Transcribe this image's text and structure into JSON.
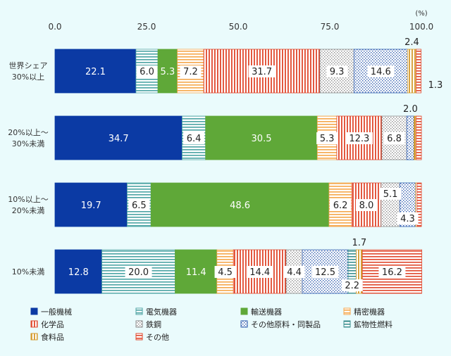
{
  "chart_data": {
    "type": "bar",
    "orientation": "horizontal",
    "stacked": true,
    "unit_label": "(%)",
    "xlim": [
      0,
      100
    ],
    "x_ticks": [
      "0.0",
      "25.0",
      "50.0",
      "75.0",
      "100.0"
    ],
    "categories": [
      [
        "世界シェア",
        "30%以上"
      ],
      [
        "20%以上～",
        "30%未満"
      ],
      [
        "10%以上～",
        "20%未満"
      ],
      [
        "10%未満"
      ]
    ],
    "series": [
      {
        "name": "一般機械",
        "color": "#0b3aa4",
        "pattern": "solid",
        "values": [
          22.1,
          34.7,
          19.7,
          12.8
        ]
      },
      {
        "name": "電気機器",
        "color": "#4aa3a3",
        "pattern": "hlines",
        "values": [
          6.0,
          6.4,
          6.5,
          20.0
        ]
      },
      {
        "name": "輸送機器",
        "color": "#5fa838",
        "pattern": "solid",
        "values": [
          5.3,
          30.5,
          48.6,
          11.4
        ]
      },
      {
        "name": "精密機器",
        "color": "#f5a64a",
        "pattern": "hlines",
        "values": [
          7.2,
          5.3,
          6.2,
          4.5
        ]
      },
      {
        "name": "化学品",
        "color": "#e0472c",
        "pattern": "vlines",
        "values": [
          31.7,
          12.3,
          8.0,
          14.4
        ]
      },
      {
        "name": "鉄鋼",
        "color": "#8a8a8a",
        "pattern": "dots",
        "values": [
          9.3,
          6.8,
          5.1,
          4.4
        ]
      },
      {
        "name": "その他原料・同製品",
        "color": "#2f5cae",
        "pattern": "dots",
        "values": [
          14.6,
          2.0,
          4.3,
          12.5
        ]
      },
      {
        "name": "鉱物性燃料",
        "color": "#3a8f8f",
        "pattern": "hlines",
        "values": [
          0.0,
          0.0,
          0.0,
          2.2
        ]
      },
      {
        "name": "食料品",
        "color": "#d49a2a",
        "pattern": "vlines",
        "values": [
          2.4,
          0.6,
          0.4,
          1.7
        ]
      },
      {
        "name": "その他",
        "color": "#e0472c",
        "pattern": "hlines",
        "values": [
          1.3,
          1.4,
          1.2,
          16.2
        ]
      }
    ],
    "data_labels": [
      [
        {
          "s": 0,
          "text": "22.1"
        },
        {
          "s": 1,
          "text": "6.0"
        },
        {
          "s": 2,
          "text": "5.3"
        },
        {
          "s": 3,
          "text": "7.2"
        },
        {
          "s": 4,
          "text": "31.7"
        },
        {
          "s": 5,
          "text": "9.3"
        },
        {
          "s": 6,
          "text": "14.6"
        },
        {
          "s": 8,
          "text": "2.4",
          "pos": "above"
        },
        {
          "s": 9,
          "text": "1.3",
          "pos": "outside"
        }
      ],
      [
        {
          "s": 0,
          "text": "34.7"
        },
        {
          "s": 1,
          "text": "6.4"
        },
        {
          "s": 2,
          "text": "30.5"
        },
        {
          "s": 3,
          "text": "5.3"
        },
        {
          "s": 4,
          "text": "12.3"
        },
        {
          "s": 5,
          "text": "6.8"
        },
        {
          "s": 6,
          "text": "2.0",
          "pos": "above"
        }
      ],
      [
        {
          "s": 0,
          "text": "19.7"
        },
        {
          "s": 1,
          "text": "6.5"
        },
        {
          "s": 2,
          "text": "48.6"
        },
        {
          "s": 3,
          "text": "6.2"
        },
        {
          "s": 4,
          "text": "8.0"
        },
        {
          "s": 5,
          "text": "5.1",
          "pos": "upper"
        },
        {
          "s": 6,
          "text": "4.3",
          "pos": "lower"
        }
      ],
      [
        {
          "s": 0,
          "text": "12.8"
        },
        {
          "s": 1,
          "text": "20.0"
        },
        {
          "s": 2,
          "text": "11.4"
        },
        {
          "s": 3,
          "text": "4.5"
        },
        {
          "s": 4,
          "text": "14.4"
        },
        {
          "s": 5,
          "text": "4.4"
        },
        {
          "s": 6,
          "text": "12.5"
        },
        {
          "s": 7,
          "text": "2.2",
          "pos": "lower"
        },
        {
          "s": 8,
          "text": "1.7",
          "pos": "above"
        },
        {
          "s": 9,
          "text": "16.2"
        }
      ]
    ],
    "legend": {
      "position": "bottom",
      "items": [
        "一般機械",
        "電気機器",
        "輸送機器",
        "精密機器",
        "化学品",
        "鉄鋼",
        "その他原料・同製品",
        "鉱物性燃料",
        "食料品",
        "その他"
      ]
    }
  }
}
